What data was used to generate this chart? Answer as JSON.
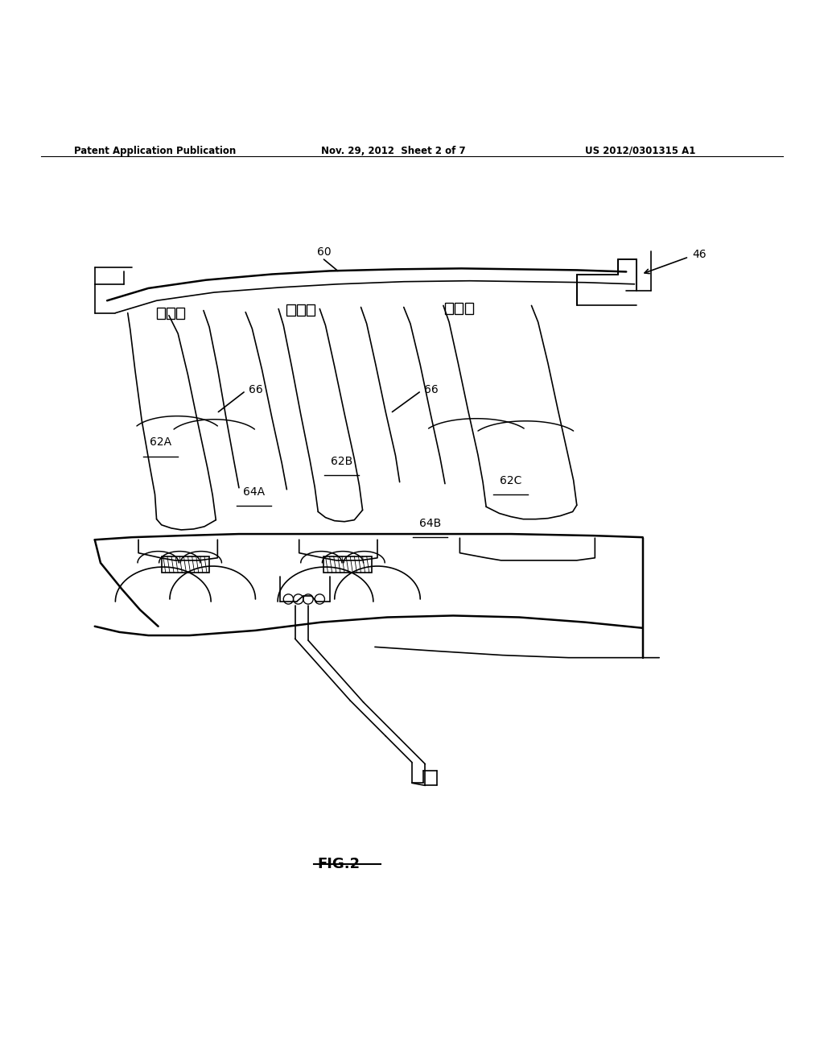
{
  "background_color": "#ffffff",
  "header_left": "Patent Application Publication",
  "header_center": "Nov. 29, 2012  Sheet 2 of 7",
  "header_right": "US 2012/0301315 A1",
  "figure_label": "FIG.2",
  "line_color": "#000000",
  "line_width": 1.2,
  "text_color": "#000000"
}
